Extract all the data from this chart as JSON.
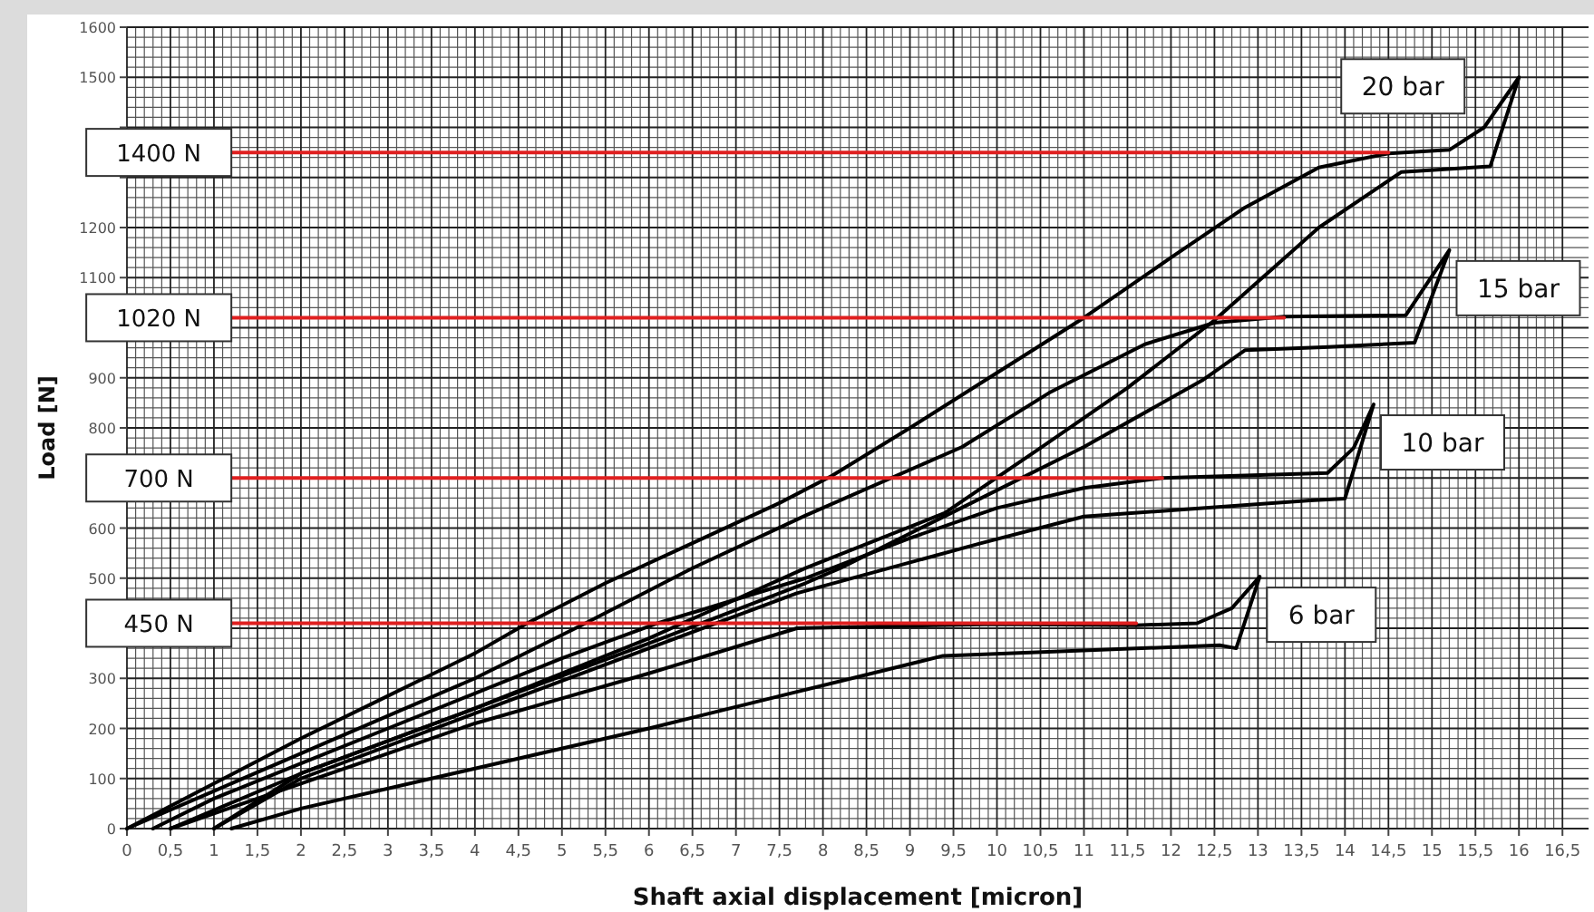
{
  "chart_data": {
    "type": "line",
    "xlabel": "Shaft axial displacement [micron]",
    "ylabel": "Load [N]",
    "xlim": [
      0,
      16.8
    ],
    "ylim": [
      0,
      1600
    ],
    "xticks": [
      0,
      {
        "value": 0.5,
        "label": "0,5"
      },
      1,
      {
        "value": 1.5,
        "label": "1,5"
      },
      2,
      {
        "value": 2.5,
        "label": "2,5"
      },
      3,
      {
        "value": 3.5,
        "label": "3,5"
      },
      4,
      {
        "value": 4.5,
        "label": "4,5"
      },
      5,
      {
        "value": 5.5,
        "label": "5,5"
      },
      6,
      {
        "value": 6.5,
        "label": "6,5"
      },
      7,
      {
        "value": 7.5,
        "label": "7,5"
      },
      8,
      {
        "value": 8.5,
        "label": "8,5"
      },
      9,
      {
        "value": 9.5,
        "label": "9,5"
      },
      10,
      {
        "value": 10.5,
        "label": "10,5"
      },
      11,
      {
        "value": 11.5,
        "label": "11,5"
      },
      12,
      {
        "value": 12.5,
        "label": "12,5"
      },
      13,
      {
        "value": 13.5,
        "label": "13,5"
      },
      14,
      {
        "value": 14.5,
        "label": "14,5"
      },
      15,
      {
        "value": 15.5,
        "label": "15,5"
      },
      16,
      {
        "value": 16.5,
        "label": "16,5"
      }
    ],
    "yticks": [
      0,
      100,
      200,
      300,
      {
        "value": 400,
        "label": null
      },
      500,
      600,
      {
        "value": 700,
        "label": null
      },
      800,
      900,
      {
        "value": 1000,
        "label": null
      },
      1100,
      1200,
      {
        "value": 1300,
        "label": null
      },
      {
        "value": 1400,
        "label": null
      },
      1500,
      1600
    ],
    "grid": true,
    "marker": "none",
    "line_style": "solid",
    "series": [
      {
        "name": "20 bar",
        "color": "#000000",
        "x": [
          0,
          1,
          2,
          3,
          4,
          4.6,
          5.5,
          6.5,
          7.5,
          8.1,
          9,
          10,
          11,
          12,
          12.85,
          13.7,
          14.5,
          15.2,
          15.6,
          16.0,
          15.67,
          14.65,
          13.7,
          12.5,
          11.5,
          10.5,
          9.4,
          7.8,
          6,
          4,
          2,
          0.5
        ],
        "values": [
          0,
          90,
          180,
          265,
          350,
          410,
          490,
          570,
          650,
          704,
          800,
          910,
          1020,
          1140,
          1240,
          1320,
          1348,
          1355,
          1400,
          1500,
          1322,
          1311,
          1200,
          1015,
          880,
          760,
          630,
          520,
          380,
          240,
          110,
          0
        ]
      },
      {
        "name": "15 bar",
        "color": "#000000",
        "x": [
          0,
          1,
          2,
          3,
          4,
          5.27,
          6.5,
          7.8,
          9.6,
          10.6,
          11.7,
          12.5,
          13.3,
          14.7,
          15.2,
          14.8,
          13.75,
          12.85,
          12.36,
          11,
          9.6,
          8.2,
          7.8,
          6,
          4,
          2,
          1
        ],
        "values": [
          0,
          75,
          150,
          225,
          300,
          410,
          520,
          625,
          762,
          870,
          967,
          1010,
          1022,
          1025,
          1155,
          970,
          961,
          955,
          895,
          762,
          641,
          520,
          490,
          370,
          240,
          110,
          0
        ]
      },
      {
        "name": "10 bar",
        "color": "#000000",
        "x": [
          0.3,
          1,
          2,
          3,
          4,
          5,
          6.1,
          7.8,
          9,
          10,
          11,
          11.9,
          13.8,
          14.1,
          14.33,
          14.0,
          13.6,
          11,
          9.8,
          7.7,
          6,
          4,
          2,
          1
        ],
        "values": [
          0,
          60,
          130,
          200,
          270,
          340,
          410,
          500,
          580,
          640,
          680,
          700,
          710,
          760,
          847,
          659,
          655,
          623,
          569,
          470,
          360,
          230,
          100,
          0
        ]
      },
      {
        "name": "6 bar",
        "color": "#000000",
        "x": [
          0.5,
          1,
          2,
          3,
          4,
          5,
          6,
          7.7,
          9,
          10,
          11.6,
          12.3,
          12.7,
          13.02,
          12.75,
          12.56,
          9.38,
          7.7,
          6,
          4,
          2,
          1.2
        ],
        "values": [
          0,
          30,
          90,
          150,
          210,
          260,
          310,
          400,
          405,
          408,
          406,
          410,
          440,
          503,
          360,
          366,
          345,
          273,
          200,
          120,
          40,
          0
        ]
      },
      {
        "name": "1400 N",
        "color": "#e02020",
        "x": [
          1.2,
          14.5
        ],
        "values": [
          1350,
          1350
        ]
      },
      {
        "name": "1020 N",
        "color": "#e02020",
        "x": [
          1.2,
          13.3
        ],
        "values": [
          1020,
          1020
        ]
      },
      {
        "name": "700 N",
        "color": "#e02020",
        "x": [
          1.2,
          11.9
        ],
        "values": [
          700,
          700
        ]
      },
      {
        "name": "450 N",
        "color": "#e02020",
        "x": [
          1.2,
          11.6
        ],
        "values": [
          410,
          410
        ]
      }
    ]
  }
}
